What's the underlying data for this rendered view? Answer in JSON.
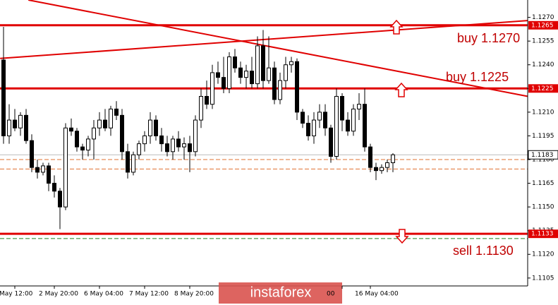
{
  "chart_data": {
    "type": "candlestick",
    "ylim": [
      1.11,
      1.1281
    ],
    "yticks": [
      {
        "value": 1.127,
        "label": "1.1270"
      },
      {
        "value": 1.1255,
        "label": "1.1255"
      },
      {
        "value": 1.124,
        "label": "1.1240"
      },
      {
        "value": 1.1225,
        "label": "1.1225"
      },
      {
        "value": 1.121,
        "label": "1.1210"
      },
      {
        "value": 1.1195,
        "label": "1.1195"
      },
      {
        "value": 1.118,
        "label": "1.1180"
      },
      {
        "value": 1.1165,
        "label": "1.1165"
      },
      {
        "value": 1.115,
        "label": "1.1150"
      },
      {
        "value": 1.1135,
        "label": "1.1135"
      },
      {
        "value": 1.112,
        "label": "1.1120"
      },
      {
        "value": 1.1105,
        "label": "1.1105"
      }
    ],
    "categories": [
      null,
      null,
      "May 12:00",
      null,
      null,
      null,
      null,
      null,
      null,
      "2 May 20:00",
      null,
      null,
      null,
      null,
      null,
      null,
      null,
      "6 May 04:00",
      null,
      null,
      null,
      null,
      null,
      null,
      null,
      "7 May 12:00",
      null,
      null,
      null,
      null,
      null,
      null,
      null,
      "8 May 20:00",
      null,
      null,
      null,
      null,
      null,
      null,
      null,
      null,
      null,
      null,
      null,
      null,
      null,
      null,
      null,
      null,
      null,
      null,
      null,
      null,
      null,
      null,
      null,
      null,
      null,
      null,
      "00",
      null,
      null,
      null,
      null,
      "16 May 04:00",
      null,
      null,
      null,
      null
    ],
    "candles": [
      [
        1.1243,
        1.1264,
        1.119,
        1.1195
      ],
      [
        1.1195,
        1.1215,
        1.119,
        1.1205
      ],
      [
        1.1205,
        1.1212,
        1.1198,
        1.12
      ],
      [
        1.12,
        1.121,
        1.1195,
        1.1208
      ],
      [
        1.1208,
        1.1212,
        1.119,
        1.1192
      ],
      [
        1.1192,
        1.1196,
        1.1172,
        1.1175
      ],
      [
        1.1175,
        1.118,
        1.1168,
        1.1172
      ],
      [
        1.1172,
        1.1178,
        1.117,
        1.1176
      ],
      [
        1.1176,
        1.1178,
        1.116,
        1.1165
      ],
      [
        1.1165,
        1.117,
        1.1156,
        1.116
      ],
      [
        1.116,
        1.1162,
        1.1136,
        1.115
      ],
      [
        1.115,
        1.1203,
        1.1148,
        1.12
      ],
      [
        1.12,
        1.1206,
        1.1195,
        1.1198
      ],
      [
        1.1198,
        1.12,
        1.1185,
        1.1188
      ],
      [
        1.1188,
        1.119,
        1.118,
        1.1186
      ],
      [
        1.1186,
        1.1195,
        1.1182,
        1.1193
      ],
      [
        1.1193,
        1.1205,
        1.118,
        1.12
      ],
      [
        1.12,
        1.121,
        1.1195,
        1.1205
      ],
      [
        1.1205,
        1.1212,
        1.1198,
        1.12
      ],
      [
        1.12,
        1.1214,
        1.1195,
        1.1212
      ],
      [
        1.1212,
        1.1217,
        1.1205,
        1.1208
      ],
      [
        1.1208,
        1.1212,
        1.118,
        1.1185
      ],
      [
        1.1185,
        1.119,
        1.1168,
        1.1172
      ],
      [
        1.1172,
        1.1185,
        1.117,
        1.1183
      ],
      [
        1.1183,
        1.1192,
        1.118,
        1.119
      ],
      [
        1.119,
        1.1198,
        1.1185,
        1.1195
      ],
      [
        1.1195,
        1.121,
        1.119,
        1.1205
      ],
      [
        1.1205,
        1.1208,
        1.1192,
        1.1195
      ],
      [
        1.1195,
        1.12,
        1.1185,
        1.119
      ],
      [
        1.119,
        1.1195,
        1.1182,
        1.1185
      ],
      [
        1.1185,
        1.1195,
        1.118,
        1.1193
      ],
      [
        1.1193,
        1.1198,
        1.1185,
        1.1188
      ],
      [
        1.1188,
        1.1194,
        1.118,
        1.119
      ],
      [
        1.119,
        1.1195,
        1.1172,
        1.1185
      ],
      [
        1.1185,
        1.1208,
        1.1182,
        1.1205
      ],
      [
        1.1205,
        1.1225,
        1.12,
        1.122
      ],
      [
        1.122,
        1.123,
        1.1212,
        1.1215
      ],
      [
        1.1215,
        1.124,
        1.1212,
        1.1235
      ],
      [
        1.1235,
        1.1242,
        1.1228,
        1.1232
      ],
      [
        1.1232,
        1.1245,
        1.1222,
        1.1225
      ],
      [
        1.1225,
        1.1248,
        1.1222,
        1.1245
      ],
      [
        1.1245,
        1.125,
        1.1235,
        1.1238
      ],
      [
        1.1238,
        1.1242,
        1.1228,
        1.1232
      ],
      [
        1.1232,
        1.124,
        1.1225,
        1.1236
      ],
      [
        1.1236,
        1.1245,
        1.1225,
        1.1228
      ],
      [
        1.1228,
        1.1258,
        1.1225,
        1.1252
      ],
      [
        1.1252,
        1.1262,
        1.1225,
        1.123
      ],
      [
        1.123,
        1.1258,
        1.1228,
        1.1238
      ],
      [
        1.1238,
        1.1242,
        1.1215,
        1.1218
      ],
      [
        1.1218,
        1.1235,
        1.1215,
        1.123
      ],
      [
        1.123,
        1.1245,
        1.1225,
        1.124
      ],
      [
        1.124,
        1.1245,
        1.1235,
        1.1242
      ],
      [
        1.1242,
        1.1244,
        1.1205,
        1.121
      ],
      [
        1.121,
        1.1212,
        1.12,
        1.1203
      ],
      [
        1.1203,
        1.1208,
        1.1192,
        1.1195
      ],
      [
        1.1195,
        1.121,
        1.119,
        1.1205
      ],
      [
        1.1205,
        1.1215,
        1.12,
        1.121
      ],
      [
        1.121,
        1.1215,
        1.1195,
        1.12
      ],
      [
        1.12,
        1.1202,
        1.1178,
        1.1182
      ],
      [
        1.1182,
        1.1225,
        1.118,
        1.122
      ],
      [
        1.122,
        1.1222,
        1.1198,
        1.1205
      ],
      [
        1.1205,
        1.121,
        1.1195,
        1.1198
      ],
      [
        1.1198,
        1.1215,
        1.1195,
        1.1212
      ],
      [
        1.1212,
        1.1222,
        1.1205,
        1.1215
      ],
      [
        1.1215,
        1.1225,
        1.1185,
        1.1188
      ],
      [
        1.1188,
        1.119,
        1.1172,
        1.1175
      ],
      [
        1.1175,
        1.1178,
        1.1167,
        1.1173
      ],
      [
        1.1173,
        1.1177,
        1.1171,
        1.1175
      ],
      [
        1.1175,
        1.118,
        1.1172,
        1.1178
      ],
      [
        1.1178,
        1.1184,
        1.1172,
        1.1183
      ]
    ],
    "levels": [
      {
        "value": 1.1265,
        "label": "1.1265",
        "color": "#e00000"
      },
      {
        "value": 1.1225,
        "label": "1.1225",
        "color": "#e00000"
      },
      {
        "value": 1.1133,
        "label": "1.1133",
        "color": "#e00000"
      }
    ],
    "dashed_levels": [
      {
        "value": 1.118,
        "color": "#e07030"
      },
      {
        "value": 1.1174,
        "color": "#e07030"
      },
      {
        "value": 1.113,
        "color": "#208020"
      }
    ],
    "last_price": {
      "value": 1.1183,
      "label": "1.1183"
    },
    "trendlines": [
      {
        "start": [
          4.4,
          1.1281
        ],
        "end": [
          92.9,
          1.122
        ],
        "color": "#e00000"
      },
      {
        "start": [
          -0.6,
          1.1244
        ],
        "end": [
          92.9,
          1.1268
        ],
        "color": "#e00000"
      }
    ],
    "annotations": [
      "buy 1.1270",
      "buy 1.1225",
      "sell 1.1130"
    ],
    "watermark": "instaforex"
  }
}
